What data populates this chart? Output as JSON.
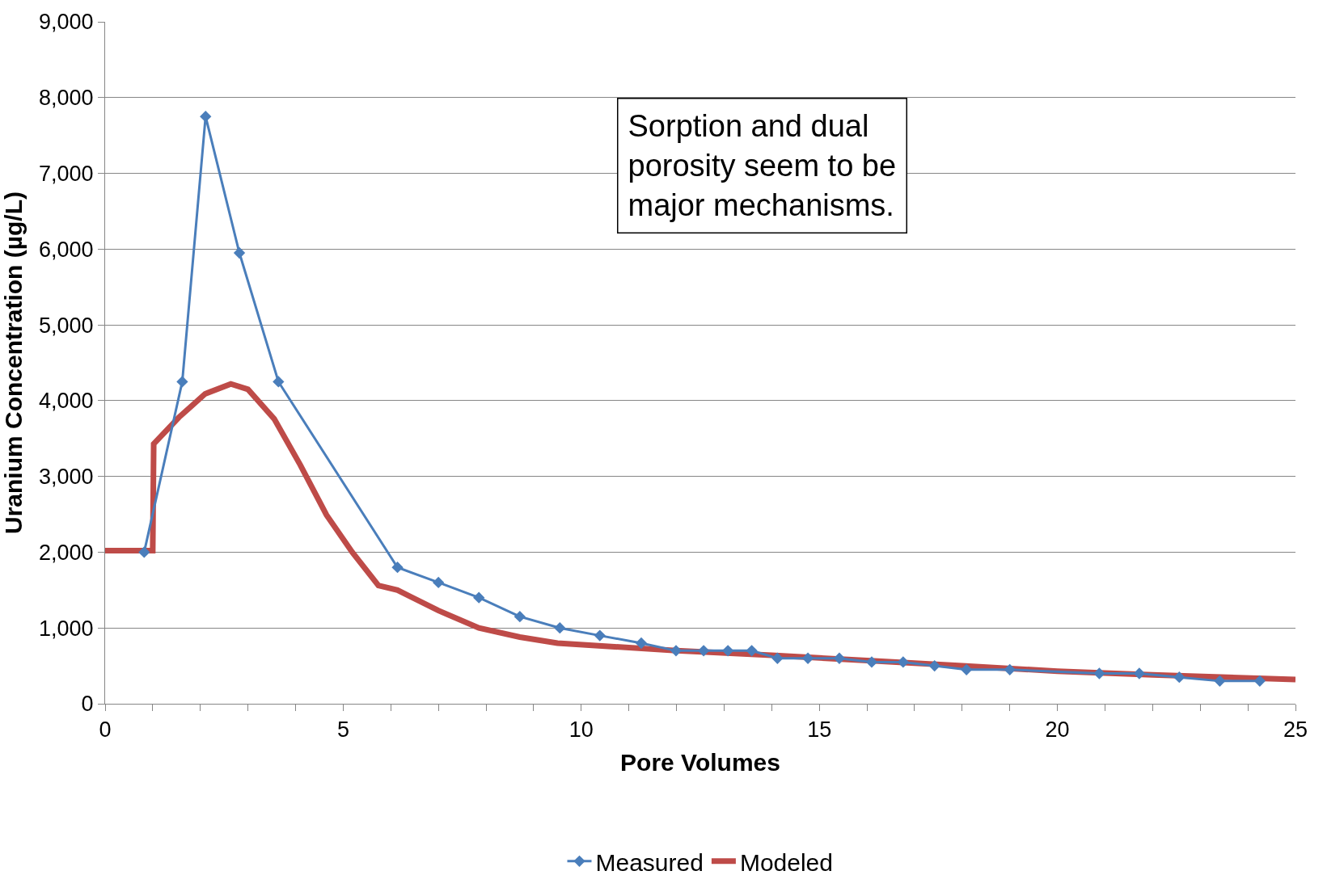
{
  "chart_data": {
    "type": "line",
    "xlabel": "Pore Volumes",
    "ylabel": "Uranium Concentration (µg/L)",
    "xlim": [
      0,
      25
    ],
    "ylim": [
      0,
      9000
    ],
    "xticks": [
      0,
      {
        "value": 1,
        "label": null
      },
      {
        "value": 2,
        "label": null
      },
      {
        "value": 3,
        "label": null
      },
      {
        "value": 4,
        "label": null
      },
      5,
      {
        "value": 6,
        "label": null
      },
      {
        "value": 7,
        "label": null
      },
      {
        "value": 8,
        "label": null
      },
      {
        "value": 9,
        "label": null
      },
      10,
      {
        "value": 11,
        "label": null
      },
      {
        "value": 12,
        "label": null
      },
      {
        "value": 13,
        "label": null
      },
      {
        "value": 14,
        "label": null
      },
      15,
      {
        "value": 16,
        "label": null
      },
      {
        "value": 17,
        "label": null
      },
      {
        "value": 18,
        "label": null
      },
      {
        "value": 19,
        "label": null
      },
      20,
      {
        "value": 21,
        "label": null
      },
      {
        "value": 22,
        "label": null
      },
      {
        "value": 23,
        "label": null
      },
      {
        "value": 24,
        "label": null
      },
      25
    ],
    "yticks": [
      {
        "value": 0,
        "label": "0"
      },
      {
        "value": 1000,
        "label": "1,000"
      },
      {
        "value": 2000,
        "label": "2,000"
      },
      {
        "value": 3000,
        "label": "3,000"
      },
      {
        "value": 4000,
        "label": "4,000"
      },
      {
        "value": 5000,
        "label": "5,000"
      },
      {
        "value": 6000,
        "label": "6,000"
      },
      {
        "value": 7000,
        "label": "7,000"
      },
      {
        "value": 8000,
        "label": "8,000"
      },
      {
        "value": 9000,
        "label": "9,000"
      }
    ],
    "grid": "y",
    "legend": "bottom",
    "annotations": [
      "Sorption and dual porosity seem to be major mechanisms."
    ],
    "series": [
      {
        "name": "Measured",
        "color": "#4a7ebb",
        "marker": "diamond",
        "x": [
          0.82,
          1.62,
          2.11,
          2.82,
          3.64,
          6.14,
          7.0,
          7.85,
          8.71,
          9.55,
          10.39,
          11.26,
          11.99,
          12.57,
          13.08,
          13.58,
          14.12,
          14.76,
          15.42,
          16.1,
          16.76,
          17.42,
          18.09,
          19.0,
          20.88,
          21.72,
          22.56,
          23.41,
          24.25
        ],
        "values": [
          2000,
          4250,
          7750,
          5950,
          4250,
          1800,
          1600,
          1400,
          1150,
          1000,
          900,
          800,
          700,
          700,
          700,
          700,
          600,
          600,
          600,
          550,
          550,
          500,
          450,
          450,
          400,
          400,
          350,
          300,
          300
        ]
      },
      {
        "name": "Modeled",
        "color": "#be4b48",
        "marker": "none",
        "x": [
          0,
          1.0,
          1.02,
          1.55,
          2.1,
          2.64,
          3.0,
          3.55,
          4.1,
          4.65,
          5.19,
          5.74,
          6.14,
          7.0,
          7.85,
          8.71,
          9.5,
          10.5,
          12.0,
          14.0,
          16.0,
          18.0,
          20.0,
          22.0,
          25.0
        ],
        "values": [
          2020,
          2020,
          3430,
          3780,
          4090,
          4220,
          4150,
          3760,
          3150,
          2490,
          2000,
          1560,
          1500,
          1230,
          1000,
          880,
          800,
          760,
          700,
          640,
          570,
          500,
          430,
          380,
          320
        ]
      }
    ]
  }
}
